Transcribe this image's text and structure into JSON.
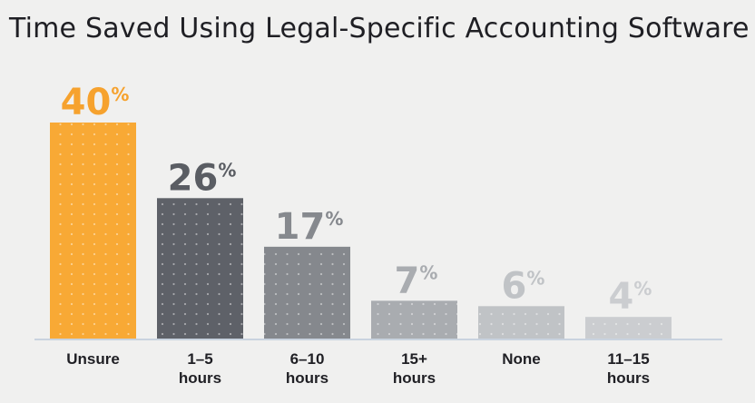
{
  "chart_data": {
    "type": "bar",
    "title": "Time Saved Using Legal-Specific Accounting Software",
    "categories": [
      "Unsure",
      "1–5 hours",
      "6–10 hours",
      "15+ hours",
      "None",
      "11–15 hours"
    ],
    "category_lines": [
      [
        "Unsure"
      ],
      [
        "1–5",
        "hours"
      ],
      [
        "6–10",
        "hours"
      ],
      [
        "15+",
        "hours"
      ],
      [
        "None"
      ],
      [
        "11–15",
        "hours"
      ]
    ],
    "values": [
      40,
      26,
      17,
      7,
      6,
      4
    ],
    "value_suffix": "%",
    "ylim": [
      0,
      40
    ],
    "grid": false,
    "legend": "none",
    "colors": {
      "bars": [
        "#f8a935",
        "#5e6168",
        "#85888d",
        "#a9acb0",
        "#c0c3c6",
        "#cbcdd0"
      ],
      "labels": [
        "#f6a22e",
        "#5a5d63",
        "#86898e",
        "#a9acb0",
        "#c0c3c6",
        "#cbcdd0"
      ],
      "baseline": "#c9d3df"
    }
  }
}
